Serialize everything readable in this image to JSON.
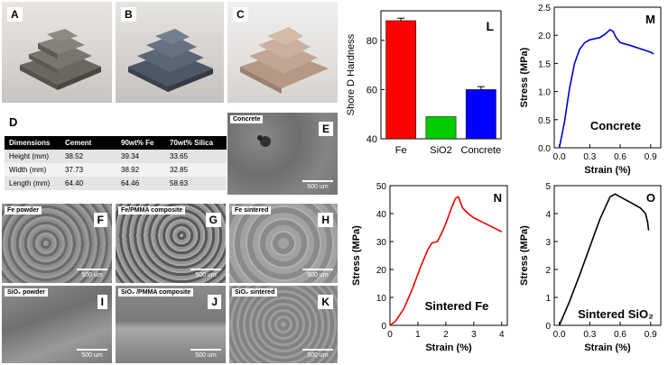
{
  "photos": [
    {
      "label": "A"
    },
    {
      "label": "B"
    },
    {
      "label": "C"
    }
  ],
  "table": {
    "panel_label": "D",
    "headers": [
      "Dimensions",
      "Cement",
      "90wt% Fe",
      "70wt% Silica"
    ],
    "rows": [
      [
        "Height (mm)",
        "38.52",
        "39.34",
        "33.65"
      ],
      [
        "Width (mm)",
        "37.73",
        "38.92",
        "32.85"
      ],
      [
        "Length (mm)",
        "64.40",
        "64.46",
        "58.63"
      ]
    ]
  },
  "sem": [
    {
      "title": "Concrete",
      "letter": "E",
      "scale": "500 um"
    },
    {
      "title": "Fe powder",
      "letter": "F",
      "scale": "500 um"
    },
    {
      "title": "Fe/PMMA composite",
      "letter": "G",
      "scale": "500 um"
    },
    {
      "title": "Fe sintered",
      "letter": "H",
      "scale": "500 um"
    },
    {
      "title": "SiO₂ powder",
      "letter": "I",
      "scale": "500 um"
    },
    {
      "title": "SiO₂ /PMMA composite",
      "letter": "J",
      "scale": "500 um"
    },
    {
      "title": "SiO₂ sintered",
      "letter": "K",
      "scale": "500 um"
    }
  ],
  "chart_data": [
    {
      "panel": "L",
      "type": "bar",
      "ylabel": "Shore D Hardness",
      "categories": [
        "Fe",
        "SiO2",
        "Concrete"
      ],
      "values": [
        88,
        49,
        60
      ],
      "errors": [
        1,
        0,
        1.2
      ],
      "colors": [
        "#ff0000",
        "#00cc00",
        "#0000ff"
      ],
      "ylim": [
        40,
        92
      ],
      "yticks": [
        "40",
        "60",
        "80"
      ]
    },
    {
      "panel": "M",
      "type": "line",
      "annotation": "Concrete",
      "xlabel": "Strain (%)",
      "ylabel": "Stress (MPa)",
      "xlim": [
        -0.05,
        1.0
      ],
      "ylim": [
        0,
        2.5
      ],
      "xticks": [
        "0.0",
        "0.3",
        "0.6",
        "0.9"
      ],
      "yticks": [
        "0.0",
        "0.5",
        "1.0",
        "1.5",
        "2.0",
        "2.5"
      ],
      "color": "#0000cc",
      "x": [
        0.0,
        0.05,
        0.1,
        0.15,
        0.2,
        0.25,
        0.3,
        0.35,
        0.4,
        0.45,
        0.5,
        0.53,
        0.56,
        0.6,
        0.7,
        0.8,
        0.9,
        0.93
      ],
      "y": [
        0.0,
        0.45,
        1.05,
        1.5,
        1.75,
        1.87,
        1.92,
        1.94,
        1.96,
        2.02,
        2.1,
        2.07,
        1.96,
        1.87,
        1.82,
        1.76,
        1.7,
        1.67
      ]
    },
    {
      "panel": "N",
      "type": "line",
      "annotation": "Sintered Fe",
      "xlabel": "Strain (%)",
      "ylabel": "Stress (MPa)",
      "xlim": [
        0,
        4.2
      ],
      "ylim": [
        0,
        50
      ],
      "xticks": [
        "0",
        "1",
        "2",
        "3",
        "4"
      ],
      "yticks": [
        "0",
        "10",
        "20",
        "30",
        "40",
        "50"
      ],
      "color": "#ee0000",
      "x": [
        0.0,
        0.2,
        0.5,
        0.8,
        1.1,
        1.35,
        1.5,
        1.7,
        1.85,
        2.0,
        2.2,
        2.35,
        2.45,
        2.6,
        2.8,
        3.0,
        3.3,
        3.6,
        4.0
      ],
      "y": [
        0.0,
        1.5,
        6.0,
        13.0,
        21.0,
        27.0,
        29.5,
        30.0,
        33.0,
        36.5,
        42.0,
        45.5,
        46.0,
        42.0,
        40.0,
        38.5,
        37.0,
        35.5,
        33.5
      ]
    },
    {
      "panel": "O",
      "type": "line",
      "annotation": "Sintered SiO₂",
      "xlabel": "Strain (%)",
      "ylabel": "Stress (MPa)",
      "xlim": [
        -0.05,
        1.0
      ],
      "ylim": [
        0,
        5
      ],
      "xticks": [
        "0.0",
        "0.3",
        "0.6",
        "0.9"
      ],
      "yticks": [
        "0",
        "1",
        "2",
        "3",
        "4",
        "5"
      ],
      "color": "#000000",
      "x": [
        0.0,
        0.1,
        0.2,
        0.3,
        0.4,
        0.5,
        0.55,
        0.6,
        0.7,
        0.8,
        0.85,
        0.87,
        0.88
      ],
      "y": [
        0.0,
        0.85,
        1.8,
        2.8,
        3.8,
        4.6,
        4.7,
        4.6,
        4.4,
        4.2,
        4.0,
        3.7,
        3.4
      ]
    }
  ]
}
